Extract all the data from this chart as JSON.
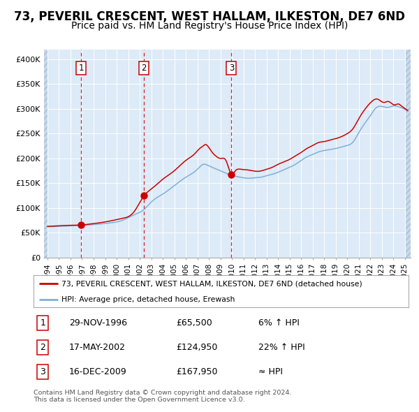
{
  "title": "73, PEVERIL CRESCENT, WEST HALLAM, ILKESTON, DE7 6ND",
  "subtitle": "Price paid vs. HM Land Registry's House Price Index (HPI)",
  "title_fontsize": 12,
  "subtitle_fontsize": 10,
  "ylim": [
    0,
    420000
  ],
  "xlim_start": 1993.7,
  "xlim_end": 2025.5,
  "yticks": [
    0,
    50000,
    100000,
    150000,
    200000,
    250000,
    300000,
    350000,
    400000
  ],
  "ytick_labels": [
    "£0",
    "£50K",
    "£100K",
    "£150K",
    "£200K",
    "£250K",
    "£300K",
    "£350K",
    "£400K"
  ],
  "hpi_color": "#7fb0d8",
  "price_color": "#cc0000",
  "bg_color": "#ddeaf7",
  "grid_color": "#ffffff",
  "sale_marker_color": "#cc0000",
  "vline_color": "#cc0000",
  "sale1_x": 1996.91,
  "sale1_y": 65500,
  "sale2_x": 2002.38,
  "sale2_y": 124950,
  "sale3_x": 2009.96,
  "sale3_y": 167950,
  "legend_line1": "73, PEVERIL CRESCENT, WEST HALLAM, ILKESTON, DE7 6ND (detached house)",
  "legend_line2": "HPI: Average price, detached house, Erewash",
  "table_data": [
    [
      "1",
      "29-NOV-1996",
      "£65,500",
      "6% ↑ HPI"
    ],
    [
      "2",
      "17-MAY-2002",
      "£124,950",
      "22% ↑ HPI"
    ],
    [
      "3",
      "16-DEC-2009",
      "£167,950",
      "≈ HPI"
    ]
  ],
  "footer": "Contains HM Land Registry data © Crown copyright and database right 2024.\nThis data is licensed under the Open Government Licence v3.0.",
  "xtick_years": [
    1994,
    1995,
    1996,
    1997,
    1998,
    1999,
    2000,
    2001,
    2002,
    2003,
    2004,
    2005,
    2006,
    2007,
    2008,
    2009,
    2010,
    2011,
    2012,
    2013,
    2014,
    2015,
    2016,
    2017,
    2018,
    2019,
    2020,
    2021,
    2022,
    2023,
    2024,
    2025
  ]
}
